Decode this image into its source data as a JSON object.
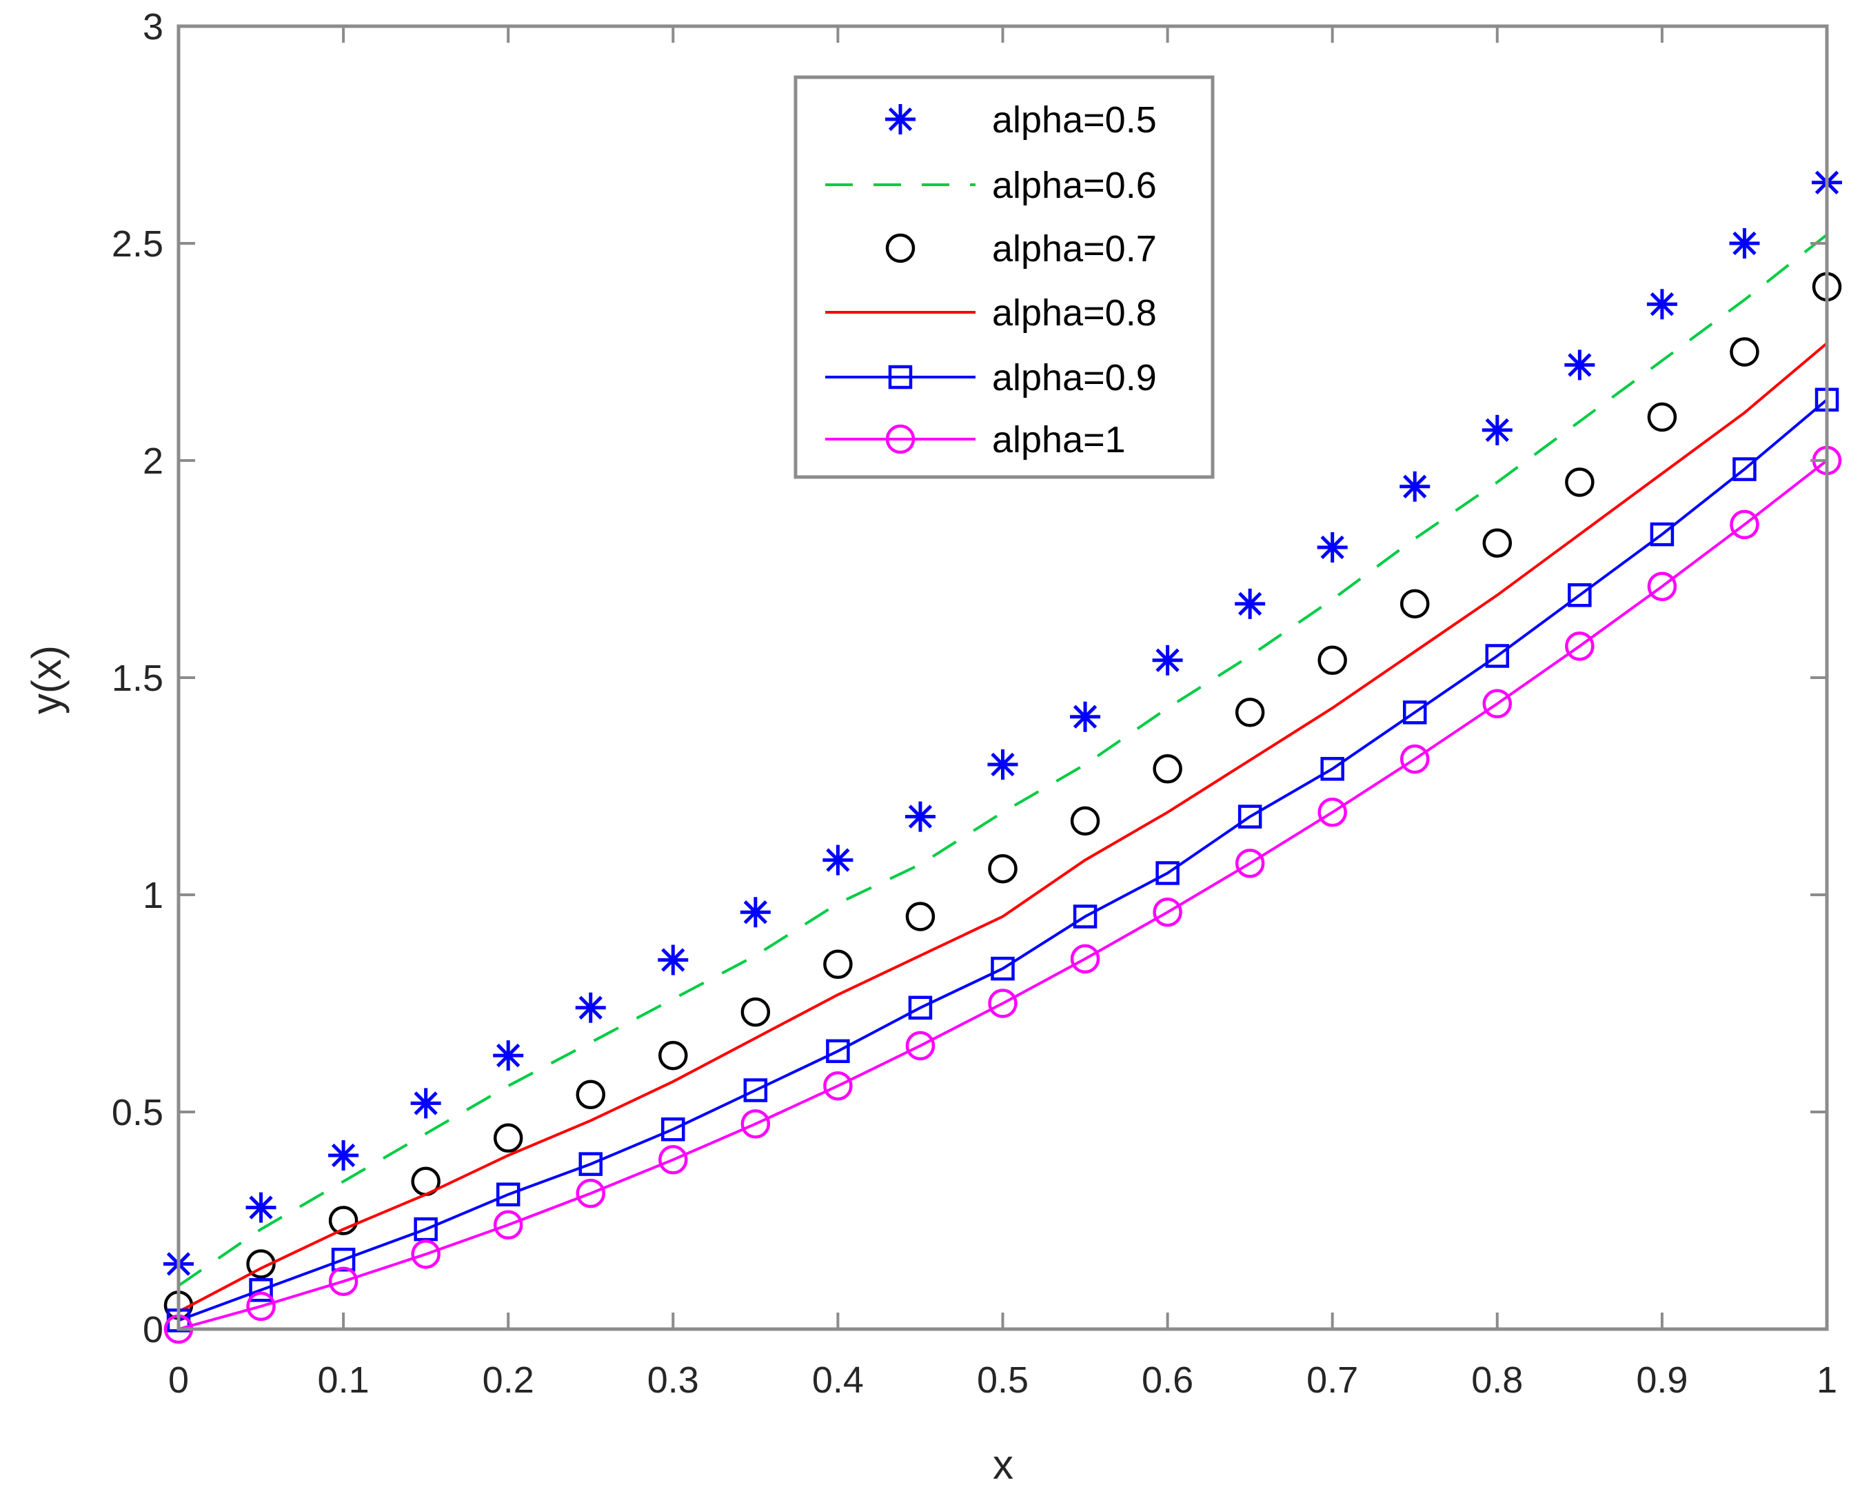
{
  "chart_data": {
    "type": "line",
    "title": "",
    "xlabel": "x",
    "ylabel": "y(x)",
    "xlim": [
      0,
      1
    ],
    "ylim": [
      0,
      3
    ],
    "grid": false,
    "legend_position": "top-center",
    "x": [
      0,
      0.05,
      0.1,
      0.15,
      0.2,
      0.25,
      0.3,
      0.35,
      0.4,
      0.45,
      0.5,
      0.55,
      0.6,
      0.65,
      0.7,
      0.75,
      0.8,
      0.85,
      0.9,
      0.95,
      1
    ],
    "xticks": [
      "0",
      "0.1",
      "0.2",
      "0.3",
      "0.4",
      "0.5",
      "0.6",
      "0.7",
      "0.8",
      "0.9",
      "1"
    ],
    "xtick_values": [
      0,
      0.1,
      0.2,
      0.3,
      0.4,
      0.5,
      0.6,
      0.7,
      0.8,
      0.9,
      1
    ],
    "yticks": [
      "0",
      "0.5",
      "1",
      "1.5",
      "2",
      "2.5",
      "3"
    ],
    "ytick_values": [
      0,
      0.5,
      1,
      1.5,
      2,
      2.5,
      3
    ],
    "series": [
      {
        "name": "alpha=0.5",
        "color": "#0000ff",
        "style": "markers",
        "marker": "star",
        "values": [
          0.15,
          0.28,
          0.4,
          0.52,
          0.63,
          0.74,
          0.85,
          0.96,
          1.08,
          1.18,
          1.3,
          1.41,
          1.54,
          1.67,
          1.8,
          1.94,
          2.07,
          2.22,
          2.36,
          2.5,
          2.64
        ]
      },
      {
        "name": "alpha=0.6",
        "color": "#00cc44",
        "style": "dashed",
        "marker": "none",
        "values": [
          0.1,
          0.23,
          0.34,
          0.45,
          0.56,
          0.66,
          0.76,
          0.86,
          0.98,
          1.07,
          1.19,
          1.3,
          1.43,
          1.55,
          1.68,
          1.82,
          1.95,
          2.09,
          2.23,
          2.37,
          2.52
        ]
      },
      {
        "name": "alpha=0.7",
        "color": "#000000",
        "style": "markers",
        "marker": "circle",
        "values": [
          0.055,
          0.15,
          0.25,
          0.34,
          0.44,
          0.54,
          0.63,
          0.73,
          0.84,
          0.95,
          1.06,
          1.17,
          1.29,
          1.42,
          1.54,
          1.67,
          1.81,
          1.95,
          2.1,
          2.25,
          2.4
        ]
      },
      {
        "name": "alpha=0.8",
        "color": "#ff0000",
        "style": "solid",
        "marker": "none",
        "values": [
          0.04,
          0.14,
          0.23,
          0.31,
          0.4,
          0.48,
          0.57,
          0.67,
          0.77,
          0.86,
          0.95,
          1.08,
          1.19,
          1.31,
          1.43,
          1.56,
          1.69,
          1.83,
          1.97,
          2.11,
          2.27
        ]
      },
      {
        "name": "alpha=0.9",
        "color": "#0000ff",
        "style": "solid",
        "marker": "square",
        "values": [
          0.02,
          0.09,
          0.16,
          0.23,
          0.31,
          0.38,
          0.46,
          0.55,
          0.64,
          0.74,
          0.83,
          0.95,
          1.05,
          1.18,
          1.29,
          1.42,
          1.55,
          1.69,
          1.83,
          1.98,
          2.14
        ]
      },
      {
        "name": "alpha=1",
        "color": "#ff00ff",
        "style": "solid",
        "marker": "circle",
        "values": [
          0,
          0.0525,
          0.11,
          0.1725,
          0.24,
          0.3125,
          0.39,
          0.4725,
          0.56,
          0.6525,
          0.75,
          0.8525,
          0.96,
          1.0725,
          1.19,
          1.3125,
          1.44,
          1.5725,
          1.71,
          1.8525,
          2.0
        ]
      }
    ]
  }
}
